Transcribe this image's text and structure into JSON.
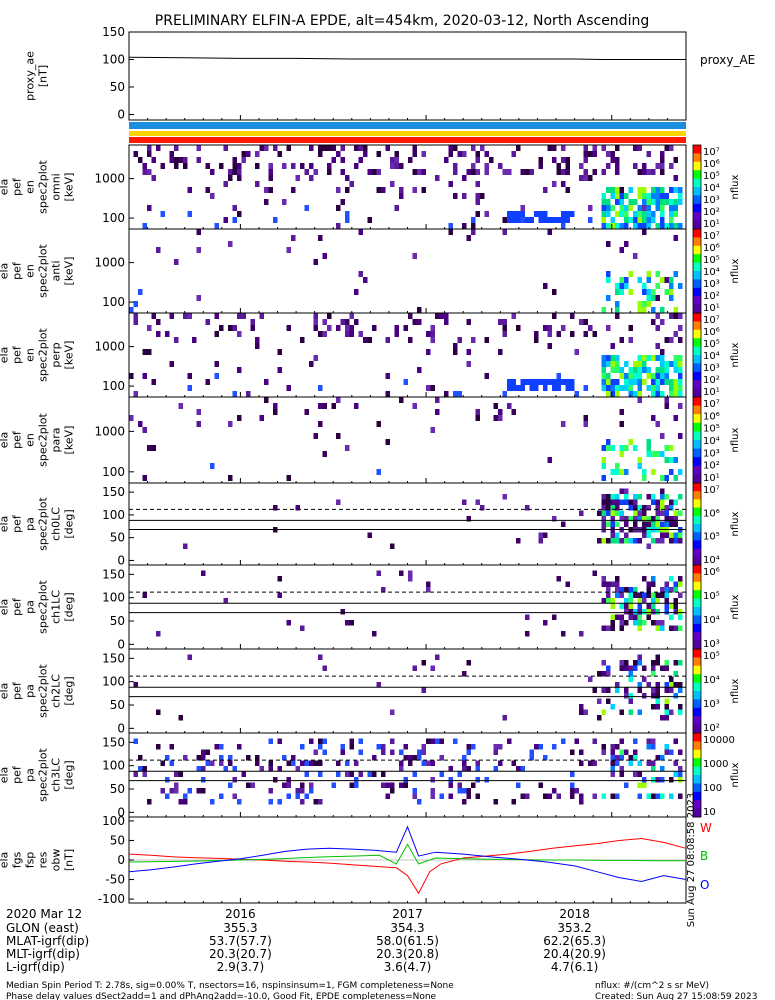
{
  "title": "PRELIMINARY ELFIN-A EPDE, alt=454km, 2020-03-12, North Ascending",
  "colors": {
    "ae_line": "#000000",
    "bar_blue": "#1a8fe0",
    "bar_yellow": "#ffd400",
    "bar_red": "#ff1a00",
    "fg_W": "#ff0000",
    "fg_B": "#00c000",
    "fg_O": "#0000ff"
  },
  "chart_data": [
    {
      "name": "proxy_ae",
      "type": "line",
      "ylabel": [
        "proxy_ae",
        "[nT]"
      ],
      "right_label": "proxy_AE",
      "ylim": [
        -10,
        150
      ],
      "yticks": [
        "150",
        "100",
        "50",
        "0"
      ],
      "x": [
        0,
        0.1,
        0.2,
        0.3,
        0.4,
        0.5,
        0.6,
        0.7,
        0.8,
        0.85,
        0.9,
        1.0
      ],
      "y": [
        104,
        103,
        102,
        102,
        101,
        101,
        101,
        101,
        101,
        100,
        100,
        100
      ]
    },
    {
      "name": "spec-omni",
      "type": "heatmap",
      "ylabel": [
        "ela",
        "pef",
        "en",
        "spec2plot",
        "omni",
        "[keV]"
      ],
      "yticks": [
        "1000",
        "100"
      ],
      "cbar_label": "nflux",
      "cbar_ticks": [
        "10⁷",
        "10⁶",
        "10⁵",
        "10⁴",
        "10³",
        "10²",
        "10¹"
      ]
    },
    {
      "name": "spec-anti",
      "type": "heatmap",
      "ylabel": [
        "ela",
        "pef",
        "en",
        "spec2plot",
        "anti",
        "[keV]"
      ],
      "yticks": [
        "1000",
        "100"
      ],
      "cbar_label": "nflux",
      "cbar_ticks": [
        "10⁷",
        "10⁶",
        "10⁵",
        "10⁴",
        "10³",
        "10²",
        "10¹"
      ]
    },
    {
      "name": "spec-perp",
      "type": "heatmap",
      "ylabel": [
        "ela",
        "pef",
        "en",
        "spec2plot",
        "perp",
        "[keV]"
      ],
      "yticks": [
        "1000",
        "100"
      ],
      "cbar_label": "nflux",
      "cbar_ticks": [
        "10⁷",
        "10⁶",
        "10⁵",
        "10⁴",
        "10³",
        "10²",
        "10¹"
      ]
    },
    {
      "name": "spec-para",
      "type": "heatmap",
      "ylabel": [
        "ela",
        "pef",
        "en",
        "spec2plot",
        "para",
        "[keV]"
      ],
      "yticks": [
        "1000",
        "100"
      ],
      "cbar_label": "nflux",
      "cbar_ticks": [
        "10⁷",
        "10⁶",
        "10⁵",
        "10⁴",
        "10³",
        "10²",
        "10¹"
      ]
    },
    {
      "name": "pa-ch0",
      "type": "heatmap",
      "ylabel": [
        "ela",
        "pef",
        "pa",
        "spec2plot",
        "ch0LC",
        "[deg]"
      ],
      "yticks": [
        "150",
        "100",
        "50",
        "0"
      ],
      "cbar_label": "nflux",
      "cbar_ticks": [
        "10⁷",
        "10⁶",
        "10⁵",
        "10⁴"
      ]
    },
    {
      "name": "pa-ch1",
      "type": "heatmap",
      "ylabel": [
        "ela",
        "pef",
        "pa",
        "spec2plot",
        "ch1LC",
        "[deg]"
      ],
      "yticks": [
        "150",
        "100",
        "50",
        "0"
      ],
      "cbar_label": "nflux",
      "cbar_ticks": [
        "10⁶",
        "10⁵",
        "10⁴",
        "10³"
      ]
    },
    {
      "name": "pa-ch2",
      "type": "heatmap",
      "ylabel": [
        "ela",
        "pef",
        "pa",
        "spec2plot",
        "ch2LC",
        "[deg]"
      ],
      "yticks": [
        "150",
        "100",
        "50",
        "0"
      ],
      "cbar_label": "nflux",
      "cbar_ticks": [
        "10⁵",
        "10⁴",
        "10³",
        "10²"
      ]
    },
    {
      "name": "pa-ch3",
      "type": "heatmap",
      "ylabel": [
        "ela",
        "pef",
        "pa",
        "spec2plot",
        "ch3LC",
        "[deg]"
      ],
      "yticks": [
        "150",
        "100",
        "50",
        "0"
      ],
      "cbar_label": "nflux",
      "cbar_ticks": [
        "10000",
        "1000",
        "100",
        "10"
      ]
    },
    {
      "name": "fgm",
      "type": "line",
      "ylabel": [
        "ela",
        "fgs",
        "fsp",
        "res",
        "obw",
        "[nT]"
      ],
      "ylim": [
        -110,
        110
      ],
      "yticks": [
        "100",
        "50",
        "0",
        "-50",
        "-100"
      ],
      "series": [
        {
          "name": "W",
          "color": "#ff0000",
          "x": [
            0,
            0.04,
            0.08,
            0.12,
            0.16,
            0.2,
            0.24,
            0.28,
            0.32,
            0.36,
            0.4,
            0.44,
            0.48,
            0.5,
            0.52,
            0.54,
            0.56,
            0.6,
            0.64,
            0.68,
            0.72,
            0.76,
            0.8,
            0.84,
            0.88,
            0.92,
            0.96,
            1.0
          ],
          "y": [
            15,
            12,
            8,
            6,
            4,
            2,
            0,
            -3,
            -5,
            -8,
            -12,
            -16,
            -20,
            -40,
            -85,
            -30,
            -10,
            5,
            10,
            15,
            22,
            30,
            36,
            42,
            50,
            55,
            45,
            30
          ]
        },
        {
          "name": "B",
          "color": "#00c000",
          "x": [
            0,
            0.05,
            0.1,
            0.15,
            0.2,
            0.25,
            0.3,
            0.35,
            0.4,
            0.45,
            0.48,
            0.5,
            0.52,
            0.55,
            0.6,
            0.65,
            0.7,
            0.75,
            0.8,
            0.85,
            0.9,
            0.95,
            1.0
          ],
          "y": [
            -5,
            -4,
            -3,
            -2,
            0,
            2,
            5,
            8,
            10,
            12,
            -10,
            40,
            -10,
            5,
            3,
            2,
            1,
            0,
            0,
            -1,
            -1,
            -2,
            -2
          ]
        },
        {
          "name": "O",
          "color": "#0000ff",
          "x": [
            0,
            0.04,
            0.08,
            0.12,
            0.16,
            0.2,
            0.24,
            0.28,
            0.32,
            0.36,
            0.4,
            0.44,
            0.48,
            0.5,
            0.52,
            0.55,
            0.6,
            0.65,
            0.7,
            0.75,
            0.8,
            0.84,
            0.88,
            0.92,
            0.96,
            1.0
          ],
          "y": [
            -30,
            -25,
            -18,
            -10,
            -3,
            3,
            12,
            22,
            28,
            30,
            28,
            25,
            20,
            85,
            10,
            20,
            15,
            8,
            2,
            -5,
            -15,
            -30,
            -45,
            -55,
            -40,
            -50
          ]
        }
      ]
    }
  ],
  "time_axis": {
    "labels": [
      "2016",
      "2017",
      "2018"
    ],
    "fractions": [
      0.2,
      0.5,
      0.8
    ],
    "rows": [
      {
        "label": "2020 Mar 12",
        "values": [
          "",
          "",
          ""
        ]
      },
      {
        "label": "GLON (east)",
        "values": [
          "355.3",
          "354.3",
          "353.2"
        ]
      },
      {
        "label": "MLAT-igrf(dip)",
        "values": [
          "53.7(57.7)",
          "58.0(61.5)",
          "62.2(65.3)"
        ]
      },
      {
        "label": "MLT-igrf(dip)",
        "values": [
          "20.3(20.7)",
          "20.3(20.8)",
          "20.4(20.9)"
        ]
      },
      {
        "label": "L-igrf(dip)",
        "values": [
          "2.9(3.7)",
          "3.6(4.7)",
          "4.7(6.1)"
        ]
      }
    ]
  },
  "vertical_stamp": "Sun Aug 27 08:08:58 2023",
  "footer": {
    "left1": "Median Spin Period T: 2.78s, sig=0.00% T, nsectors=16, nspinsinsum=1, FGM completeness=None",
    "left2": "Phase delay values dSect2add=1 and dPhAng2add=-10.0, Good Fit, EPDE completeness=None",
    "right1": "nflux: #/(cm^2 s sr MeV)",
    "right2": "Created: Sun Aug 27 15:08:59 2023"
  }
}
